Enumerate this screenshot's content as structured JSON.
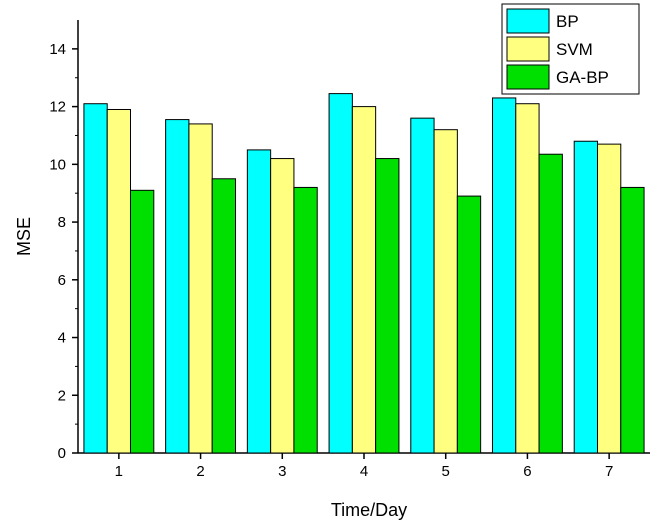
{
  "chart_data": {
    "type": "bar",
    "categories": [
      "1",
      "2",
      "3",
      "4",
      "5",
      "6",
      "7"
    ],
    "series": [
      {
        "name": "BP",
        "color": "#00FFFF",
        "values": [
          12.1,
          11.55,
          10.5,
          12.45,
          11.6,
          12.3,
          10.8
        ]
      },
      {
        "name": "SVM",
        "color": "#FFFF80",
        "values": [
          11.9,
          11.4,
          10.2,
          12.0,
          11.2,
          12.1,
          10.7
        ]
      },
      {
        "name": "GA-BP",
        "color": "#00E000",
        "values": [
          9.1,
          9.5,
          9.2,
          10.2,
          8.9,
          10.35,
          9.2
        ]
      }
    ],
    "title": "",
    "xlabel": "Time/Day",
    "ylabel": "MSE",
    "ylim": [
      0,
      15
    ],
    "yticks": [
      0,
      2,
      4,
      6,
      8,
      10,
      12,
      14
    ],
    "grid": false,
    "legend_position": "top-right"
  }
}
